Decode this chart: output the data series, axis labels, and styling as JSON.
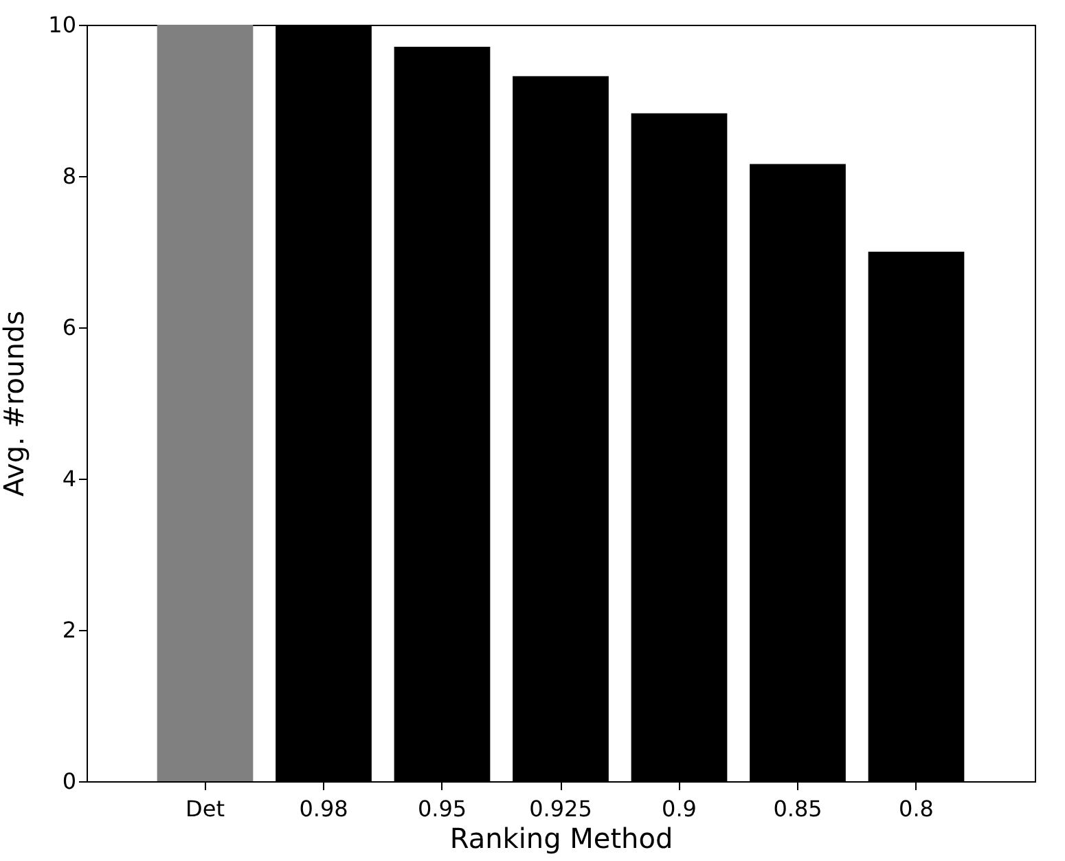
{
  "chart_data": {
    "type": "bar",
    "xlabel": "Ranking Method",
    "ylabel": "Avg. #rounds",
    "categories": [
      "Det",
      "0.98",
      "0.95",
      "0.925",
      "0.9",
      "0.85",
      "0.8"
    ],
    "values": [
      10,
      10,
      9.71,
      9.32,
      8.83,
      8.16,
      7.0
    ],
    "colors": [
      "#808080",
      "#000000",
      "#000000",
      "#000000",
      "#000000",
      "#000000",
      "#000000"
    ],
    "ylim": [
      0,
      10
    ],
    "yticks": [
      0,
      2,
      4,
      6,
      8,
      10
    ],
    "grid": false
  }
}
